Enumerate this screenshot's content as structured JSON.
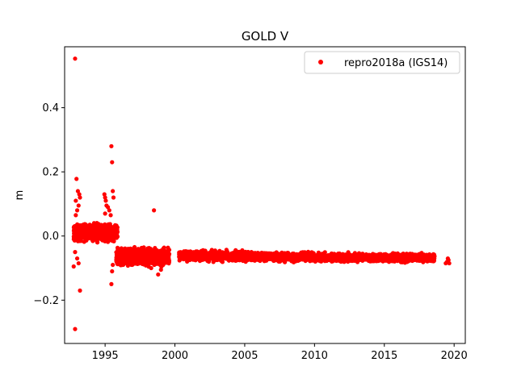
{
  "chart_data": {
    "type": "scatter",
    "title": "GOLD V",
    "xlabel": "",
    "ylabel": "m",
    "xlim": [
      1992.1,
      2020.8
    ],
    "ylim": [
      -0.335,
      0.59
    ],
    "x_ticks": [
      1995,
      2000,
      2005,
      2010,
      2015,
      2020
    ],
    "x_tick_labels": [
      "1995",
      "2000",
      "2005",
      "2010",
      "2015",
      "2020"
    ],
    "y_ticks": [
      -0.2,
      0.0,
      0.2,
      0.4
    ],
    "y_tick_labels": [
      "−0.2",
      "0.0",
      "0.2",
      "0.4"
    ],
    "grid": false,
    "legend_position": "top-right",
    "colors": {
      "series": "#ff0000",
      "axes": "#000000"
    },
    "series": [
      {
        "name": "repro2018a (IGS14)",
        "color": "#ff0000",
        "marker": "circle",
        "points": [
          [
            1992.85,
            0.553
          ],
          [
            1992.85,
            -0.29
          ],
          [
            1993.2,
            -0.17
          ],
          [
            1992.95,
            0.178
          ],
          [
            1993.05,
            0.14
          ],
          [
            1993.15,
            0.13
          ],
          [
            1992.9,
            0.11
          ],
          [
            1992.75,
            -0.095
          ],
          [
            1992.85,
            -0.05
          ],
          [
            1993.1,
            -0.085
          ],
          [
            1993.0,
            -0.07
          ],
          [
            1992.9,
            0.065
          ],
          [
            1993.0,
            0.08
          ],
          [
            1993.1,
            0.095
          ],
          [
            1993.2,
            0.12
          ],
          [
            1995.45,
            0.28
          ],
          [
            1995.5,
            0.23
          ],
          [
            1995.55,
            0.14
          ],
          [
            1995.6,
            0.12
          ],
          [
            1994.95,
            0.13
          ],
          [
            1995.0,
            0.12
          ],
          [
            1995.05,
            0.11
          ],
          [
            1995.1,
            0.095
          ],
          [
            1995.2,
            0.09
          ],
          [
            1995.3,
            0.08
          ],
          [
            1995.0,
            0.07
          ],
          [
            1995.4,
            0.065
          ],
          [
            1995.45,
            -0.15
          ],
          [
            1995.5,
            -0.11
          ],
          [
            1995.55,
            -0.09
          ],
          [
            1998.5,
            0.08
          ],
          [
            1998.8,
            -0.12
          ],
          [
            1999.0,
            -0.105
          ],
          [
            1998.3,
            -0.1
          ],
          [
            2019.4,
            -0.085
          ],
          [
            2019.5,
            -0.08
          ],
          [
            2019.6,
            -0.075
          ],
          [
            2019.65,
            -0.085
          ],
          [
            2019.55,
            -0.07
          ]
        ],
        "segments": [
          {
            "x_from": 1992.75,
            "x_to": 1995.9,
            "y_center": 0.01,
            "y_spread": 0.035,
            "n": 900
          },
          {
            "x_from": 1995.8,
            "x_to": 1999.6,
            "y_center": -0.065,
            "y_spread": 0.035,
            "n": 1100
          },
          {
            "x_from": 2000.3,
            "x_to": 2005.0,
            "y_center": -0.062,
            "y_spread": 0.022,
            "n": 800
          },
          {
            "x_from": 2005.0,
            "x_to": 2010.0,
            "y_center": -0.065,
            "y_spread": 0.018,
            "n": 750
          },
          {
            "x_from": 2010.0,
            "x_to": 2015.0,
            "y_center": -0.067,
            "y_spread": 0.017,
            "n": 750
          },
          {
            "x_from": 2015.0,
            "x_to": 2018.6,
            "y_center": -0.068,
            "y_spread": 0.017,
            "n": 550
          }
        ]
      }
    ]
  }
}
